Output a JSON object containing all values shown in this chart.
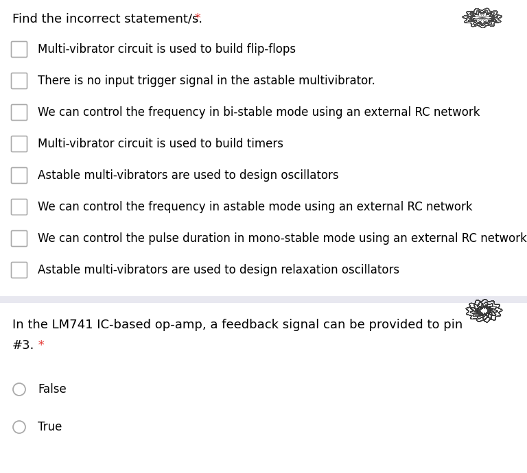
{
  "title": "Find the incorrect statement/s.",
  "title_color": "#000000",
  "asterisk_color": "#e53935",
  "background_color": "#ffffff",
  "divider_color": "#d0d0dc",
  "checkboxes": [
    "Multi-vibrator circuit is used to build flip-flops",
    "There is no input trigger signal in the astable multivibrator.",
    "We can control the frequency in bi-stable mode using an external RC network",
    "Multi-vibrator circuit is used to build timers",
    "Astable multi-vibrators are used to design oscillators",
    "We can control the frequency in astable mode using an external RC network",
    "We can control the pulse duration in mono-stable mode using an external RC network",
    "Astable multi-vibrators are used to design relaxation oscillators"
  ],
  "q2_title_line1": "In the LM741 IC-based op-amp, a feedback signal can be provided to pin",
  "q2_title_line2": "#3.",
  "q2_options": [
    "False",
    "True"
  ],
  "font_size_title": 13,
  "font_size_items": 12,
  "font_size_q2_title": 13,
  "font_size_q2_options": 12,
  "text_color": "#000000",
  "checkbox_border_color": "#aaaaaa",
  "radio_border_color": "#aaaaaa"
}
